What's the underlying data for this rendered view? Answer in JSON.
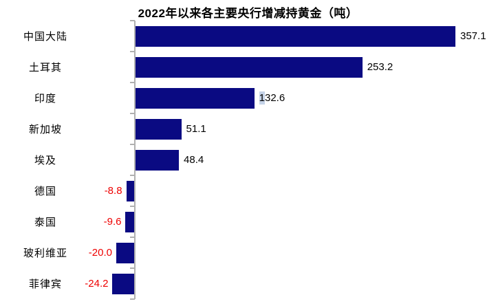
{
  "chart_data": {
    "type": "bar",
    "orientation": "horizontal",
    "title": "2022年以来各主要央行增减持黄金（吨）",
    "categories": [
      "中国大陆",
      "土耳其",
      "印度",
      "新加坡",
      "埃及",
      "德国",
      "泰国",
      "玻利维亚",
      "菲律宾"
    ],
    "values": [
      357.1,
      253.2,
      132.6,
      51.1,
      48.4,
      -8.8,
      -9.6,
      -20.0,
      -24.2
    ],
    "value_labels": [
      "357.1",
      "253.2",
      "132.6",
      "51.1",
      "48.4",
      "-8.8",
      "-9.6",
      "-20.0",
      "-24.2"
    ],
    "baseline": 0,
    "grid": false,
    "legend": "none",
    "axis_ticks": "category-boundaries",
    "selection_highlight": {
      "row_index": 2,
      "char_count": 1
    },
    "colors": {
      "bar": "#0a0a82",
      "positive_value_label": "#000000",
      "negative_value_label": "#ee0000",
      "category_label": "#000000",
      "axis": "#b0b0b0",
      "title": "#000000",
      "selection_bg": "#c5d3e8"
    }
  }
}
